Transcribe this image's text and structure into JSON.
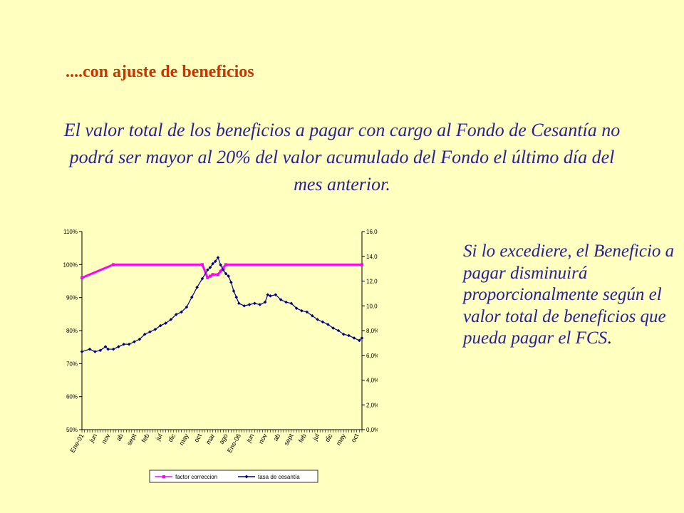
{
  "slide": {
    "heading": "....con ajuste de beneficios",
    "intro": "El valor total de los beneficios a pagar con cargo al Fondo de Cesantía no podrá ser mayor al 20% del valor acumulado del Fondo el último día del mes anterior.",
    "side_text": "Si lo excediere, el Beneficio a pagar disminuirá proporcionalmente según el valor total de beneficios que pueda pagar el FCS",
    "side_end": "."
  },
  "chart_data": {
    "type": "line",
    "y_left": {
      "min": 50,
      "max": 110,
      "ticks": [
        "50%",
        "60%",
        "70%",
        "80%",
        "90%",
        "100%",
        "110%"
      ]
    },
    "y_right": {
      "min": 0,
      "max": 16,
      "ticks": [
        "0,0%",
        "2,0%",
        "4,0%",
        "6,0%",
        "8,0%",
        "10,0%",
        "12,0%",
        "14,0%",
        "16,0%"
      ]
    },
    "x_tick_labels": [
      "Ene-01",
      "jun",
      "nov",
      "ab",
      "sept",
      "feb",
      "jul",
      "dic",
      "may",
      "oct",
      "mar",
      "ago",
      "Ene-06",
      "jun",
      "nov",
      "ab",
      "sept",
      "feb",
      "jul",
      "dic",
      "may",
      "oct"
    ],
    "x_tick_months": [
      0,
      5,
      10,
      15,
      20,
      25,
      30,
      35,
      40,
      45,
      50,
      55,
      60,
      65,
      70,
      75,
      80,
      85,
      90,
      95,
      100,
      105
    ],
    "n_months": 108,
    "series": [
      {
        "name": "factor correccion",
        "axis": "left",
        "color": "#ff00ff",
        "points": [
          [
            0,
            96
          ],
          [
            12,
            100
          ],
          [
            46,
            100
          ],
          [
            48,
            96
          ],
          [
            49,
            96.5
          ],
          [
            50,
            97
          ],
          [
            52,
            97
          ],
          [
            53,
            98
          ],
          [
            54,
            99
          ],
          [
            55,
            100
          ],
          [
            107,
            100
          ]
        ]
      },
      {
        "name": "tasa de cesantía",
        "axis": "right",
        "color": "#000080",
        "points": [
          [
            0,
            6.3
          ],
          [
            3,
            6.5
          ],
          [
            5,
            6.3
          ],
          [
            7,
            6.4
          ],
          [
            9,
            6.7
          ],
          [
            10,
            6.5
          ],
          [
            12,
            6.5
          ],
          [
            14,
            6.7
          ],
          [
            16,
            6.9
          ],
          [
            18,
            6.9
          ],
          [
            20,
            7.1
          ],
          [
            22,
            7.3
          ],
          [
            24,
            7.7
          ],
          [
            26,
            7.9
          ],
          [
            28,
            8.1
          ],
          [
            30,
            8.4
          ],
          [
            32,
            8.6
          ],
          [
            34,
            8.9
          ],
          [
            36,
            9.3
          ],
          [
            38,
            9.5
          ],
          [
            40,
            9.9
          ],
          [
            42,
            10.7
          ],
          [
            44,
            11.5
          ],
          [
            46,
            12.2
          ],
          [
            48,
            12.9
          ],
          [
            49,
            13.1
          ],
          [
            50,
            13.4
          ],
          [
            51,
            13.6
          ],
          [
            52,
            13.9
          ],
          [
            53,
            13.3
          ],
          [
            54,
            12.9
          ],
          [
            55,
            12.6
          ],
          [
            56,
            12.4
          ],
          [
            57,
            11.9
          ],
          [
            58,
            11.2
          ],
          [
            59,
            10.7
          ],
          [
            60,
            10.2
          ],
          [
            62,
            10
          ],
          [
            64,
            10.1
          ],
          [
            66,
            10.2
          ],
          [
            68,
            10.1
          ],
          [
            70,
            10.3
          ],
          [
            71,
            10.9
          ],
          [
            72,
            10.8
          ],
          [
            74,
            10.9
          ],
          [
            76,
            10.5
          ],
          [
            78,
            10.3
          ],
          [
            80,
            10.2
          ],
          [
            82,
            9.8
          ],
          [
            84,
            9.6
          ],
          [
            86,
            9.5
          ],
          [
            88,
            9.2
          ],
          [
            90,
            8.9
          ],
          [
            92,
            8.7
          ],
          [
            94,
            8.5
          ],
          [
            96,
            8.2
          ],
          [
            98,
            8
          ],
          [
            100,
            7.7
          ],
          [
            102,
            7.6
          ],
          [
            104,
            7.4
          ],
          [
            106,
            7.2
          ],
          [
            107,
            7.4
          ]
        ]
      }
    ],
    "legend": {
      "placement": "bottom",
      "entries": [
        "factor correccion",
        "tasa de cesantía"
      ]
    },
    "grid": false
  }
}
